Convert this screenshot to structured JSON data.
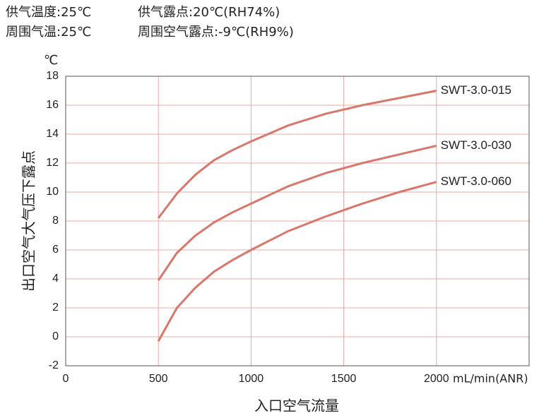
{
  "chart_data": {
    "type": "line",
    "annotations": [
      "供气温度:25℃",
      "供气露点:20℃(RH74%)",
      "周围气温:25℃",
      "周围空气露点:-9℃(RH9%)"
    ],
    "y_unit": "℃",
    "x_unit": "mL/min(ANR)",
    "ylabel": "出口空气大气压下露点",
    "xlabel": "入口空气流量",
    "x": [
      500,
      600,
      700,
      800,
      900,
      1000,
      1200,
      1400,
      1600,
      1800,
      2000
    ],
    "series": [
      {
        "name": "SWT-3.0-015",
        "color": "#d9776b",
        "values": [
          8.2,
          9.9,
          11.2,
          12.2,
          12.9,
          13.5,
          14.6,
          15.4,
          16.0,
          16.5,
          17.0
        ]
      },
      {
        "name": "SWT-3.0-030",
        "color": "#d9776b",
        "values": [
          3.9,
          5.8,
          7.0,
          7.9,
          8.6,
          9.2,
          10.4,
          11.3,
          12.0,
          12.6,
          13.2
        ]
      },
      {
        "name": "SWT-3.0-060",
        "color": "#d9776b",
        "values": [
          -0.3,
          2.0,
          3.4,
          4.5,
          5.3,
          6.0,
          7.3,
          8.3,
          9.2,
          10.0,
          10.7
        ]
      }
    ],
    "xlim": [
      0,
      2500
    ],
    "ylim": [
      -2,
      18
    ],
    "xticks": [
      0,
      500,
      1000,
      1500,
      2000
    ],
    "yticks": [
      -2,
      0,
      2,
      4,
      6,
      8,
      10,
      12,
      14,
      16,
      18
    ],
    "grid": true,
    "grid_color": "#eba8a3"
  }
}
